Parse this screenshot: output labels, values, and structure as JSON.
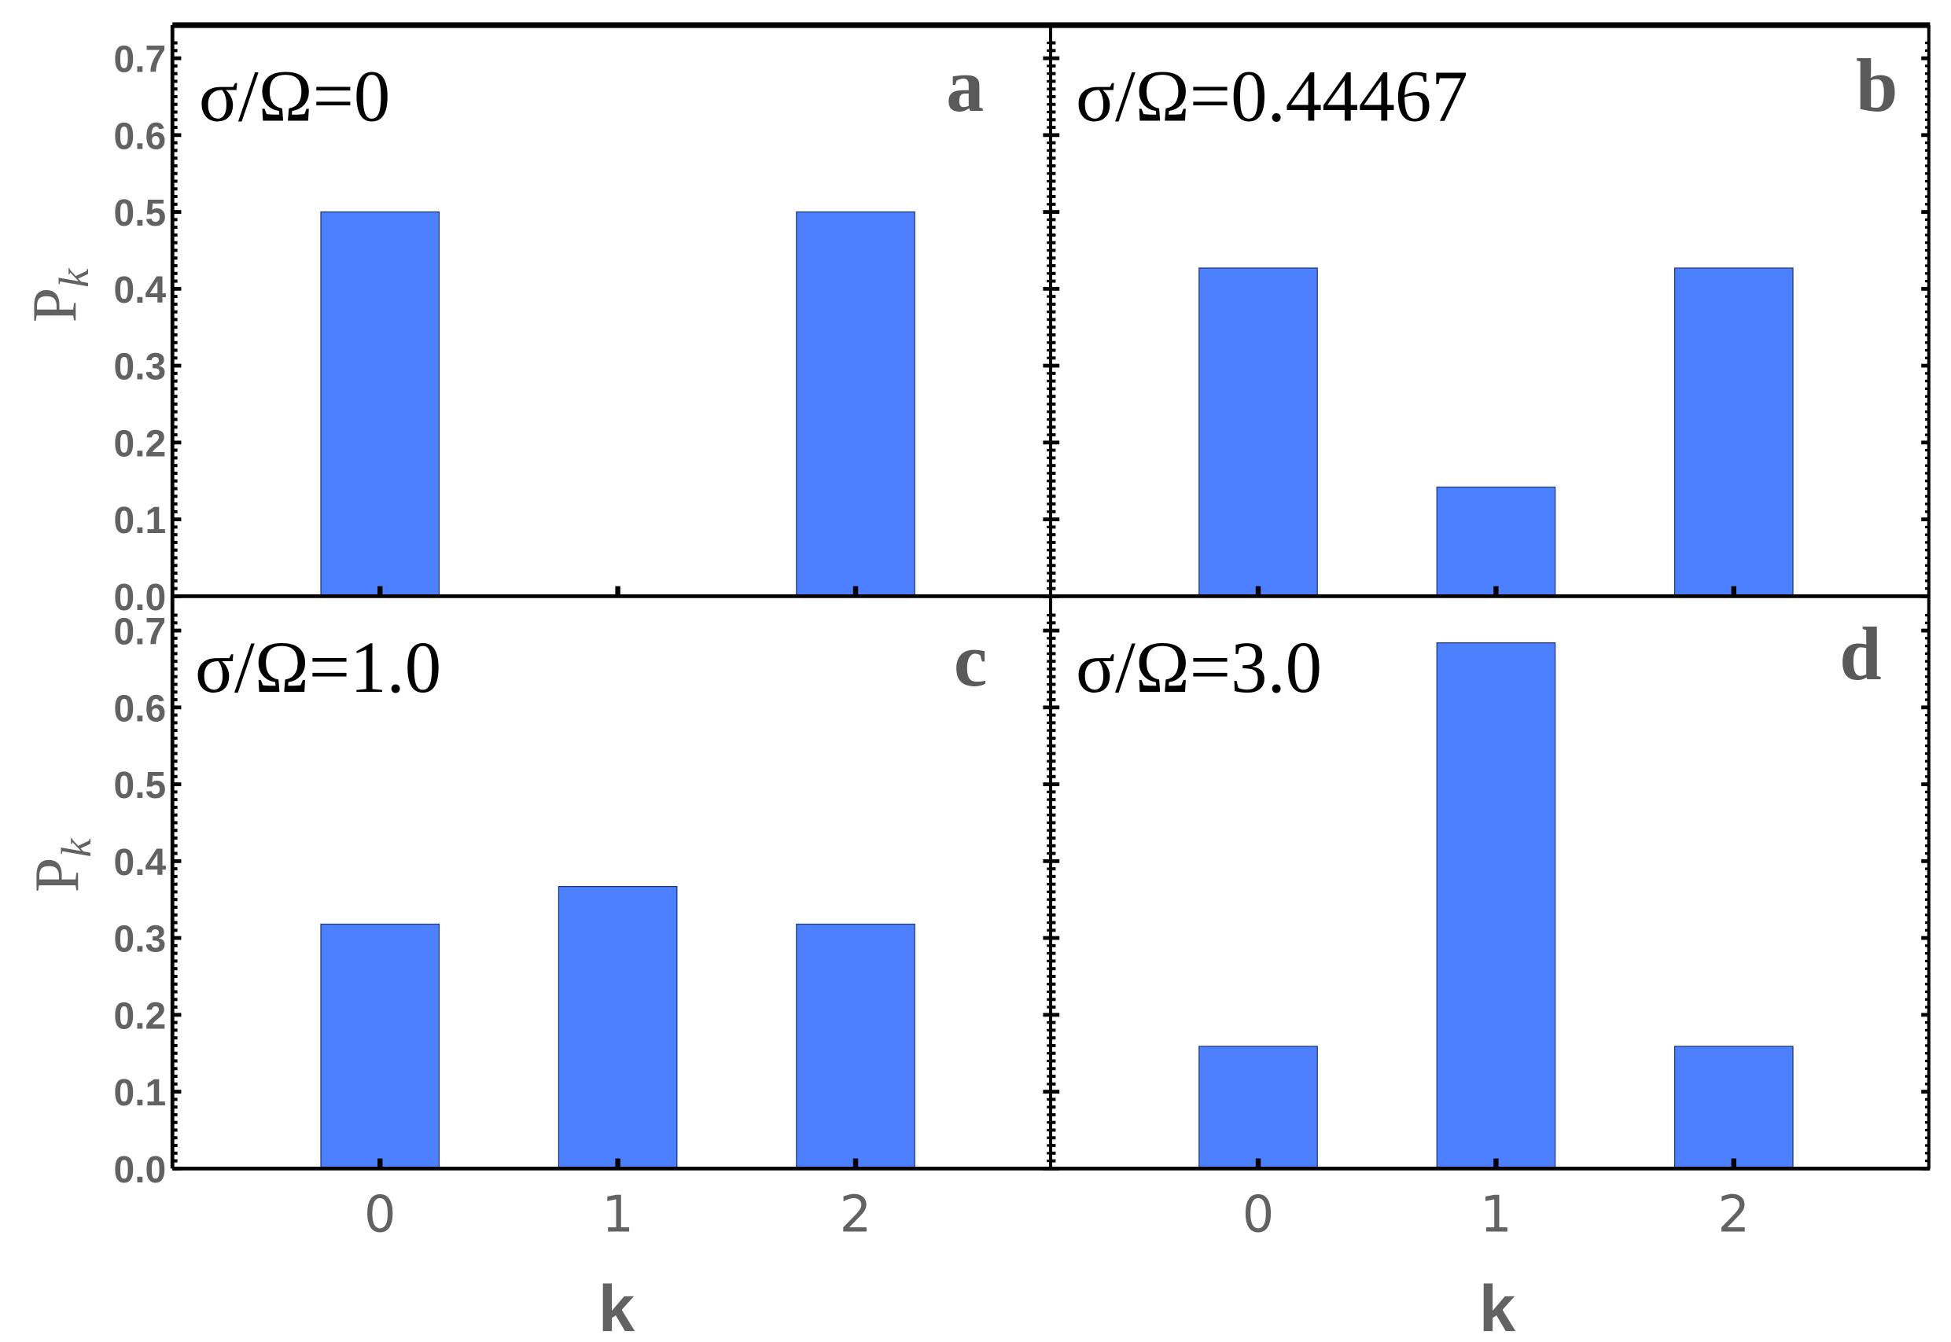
{
  "figure": {
    "ylabel": "P",
    "ylabel_sub": "k",
    "xlabel": "k",
    "colors": {
      "bar": "#4d80ff",
      "frame": "#000000",
      "tick_label": "#626262"
    }
  },
  "chart_data": [
    {
      "panel": "a",
      "type": "bar",
      "annotation": "σ/Ω=0",
      "categories": [
        "0",
        "1",
        "2"
      ],
      "values": [
        0.5,
        0.0,
        0.5
      ],
      "xlabel": "k",
      "ylabel": "P_k",
      "ylim": [
        0,
        0.72
      ],
      "yticks": [
        "0.0",
        "0.1",
        "0.2",
        "0.3",
        "0.4",
        "0.5",
        "0.6",
        "0.7"
      ],
      "grid": false
    },
    {
      "panel": "b",
      "type": "bar",
      "annotation": "σ/Ω=0.44467",
      "categories": [
        "0",
        "1",
        "2"
      ],
      "values": [
        0.427,
        0.142,
        0.427
      ],
      "xlabel": "k",
      "ylabel": "P_k",
      "ylim": [
        0,
        0.72
      ],
      "grid": false
    },
    {
      "panel": "c",
      "type": "bar",
      "annotation": "σ/Ω=1.0",
      "categories": [
        "0",
        "1",
        "2"
      ],
      "values": [
        0.318,
        0.367,
        0.318
      ],
      "xlabel": "k",
      "ylabel": "P_k",
      "ylim": [
        0,
        0.72
      ],
      "yticks": [
        "0.0",
        "0.1",
        "0.2",
        "0.3",
        "0.4",
        "0.5",
        "0.6",
        "0.7"
      ],
      "grid": false
    },
    {
      "panel": "d",
      "type": "bar",
      "annotation": "σ/Ω=3.0",
      "categories": [
        "0",
        "1",
        "2"
      ],
      "values": [
        0.159,
        0.684,
        0.159
      ],
      "xlabel": "k",
      "ylabel": "P_k",
      "ylim": [
        0,
        0.72
      ],
      "grid": false
    }
  ],
  "labels": {
    "yticks": [
      "0.0",
      "0.1",
      "0.2",
      "0.3",
      "0.4",
      "0.5",
      "0.6",
      "0.7"
    ],
    "xticks": [
      "0",
      "1",
      "2"
    ],
    "panel_a": {
      "letter": "a",
      "annotation": "σ/Ω=0"
    },
    "panel_b": {
      "letter": "b",
      "annotation": "σ/Ω=0.44467"
    },
    "panel_c": {
      "letter": "c",
      "annotation": "σ/Ω=1.0"
    },
    "panel_d": {
      "letter": "d",
      "annotation": "σ/Ω=3.0"
    }
  }
}
